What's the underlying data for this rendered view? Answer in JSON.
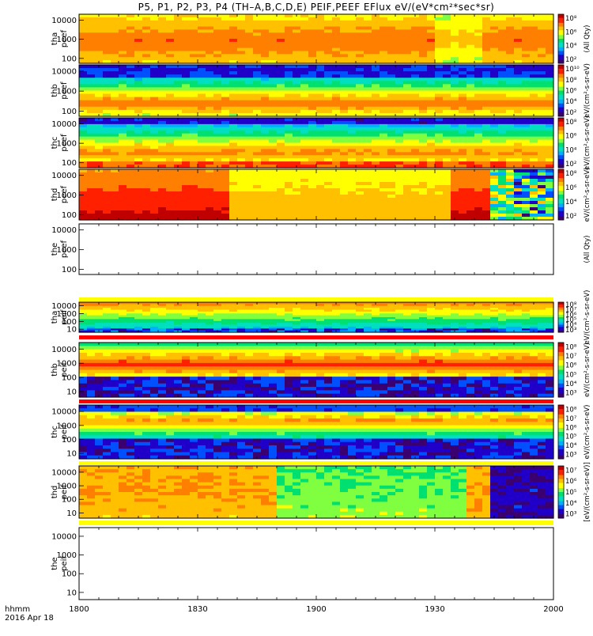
{
  "chart_data": {
    "type": "heatmap",
    "title": "P5, P1, P2, P3, P4 (TH–A,B,C,D,E) PEIF,PEEF EFlux eV/(eV*cm²*sec*sr)",
    "x_axis": {
      "tick_labels": [
        "1800",
        "1830",
        "1900",
        "1930",
        "2000"
      ],
      "range": [
        "18:00",
        "20:00"
      ],
      "label_line1": "hhmm",
      "label_line2": "2016 Apr 18"
    },
    "scale": "log",
    "panels": [
      {
        "label1": "tha",
        "label2": "peef",
        "yticks": [
          "10000",
          "1000",
          "100"
        ],
        "cbar_ticks": [
          "10⁸",
          "10⁶",
          "10⁴",
          "10²"
        ],
        "cbar_label": "(All Qty)",
        "pattern": "tha_e",
        "empty": false
      },
      {
        "label1": "thb",
        "label2": "peef",
        "yticks": [
          "10000",
          "1000",
          "100"
        ],
        "cbar_ticks": [
          "10¹⁰",
          "10⁸",
          "10⁶",
          "10⁴",
          "10²"
        ],
        "cbar_label": "eV/(cm²-s-sr-eV)",
        "pattern": "thb_e",
        "empty": false
      },
      {
        "label1": "thc",
        "label2": "peef",
        "yticks": [
          "10000",
          "1000",
          "100"
        ],
        "cbar_ticks": [
          "10⁸",
          "10⁶",
          "10⁴",
          "10²"
        ],
        "cbar_label": "eV/(cm²-s-sr-eV)",
        "pattern": "thc_e",
        "empty": false
      },
      {
        "label1": "thd",
        "label2": "peef",
        "yticks": [
          "10000",
          "1000",
          "100"
        ],
        "cbar_ticks": [
          "10⁸",
          "10⁶",
          "10⁴",
          "10²"
        ],
        "cbar_label": "eV/(cm²-s-sr-eV)",
        "pattern": "thd_e",
        "empty": false
      },
      {
        "label1": "the",
        "label2": "peef",
        "yticks": [
          "10000",
          "1000",
          "100"
        ],
        "cbar_ticks": [],
        "cbar_label": "(All Qty)",
        "pattern": "none",
        "empty": true
      },
      {
        "label1": "tha",
        "label2": "peif",
        "yticks": [
          "10000",
          "1000",
          "100",
          "10"
        ],
        "cbar_ticks": [
          "10⁸",
          "10⁷",
          "10⁶",
          "10⁵",
          "10⁴",
          "10³"
        ],
        "cbar_label": "eV/(cm²-s-sr-eV)",
        "pattern": "tha_i",
        "empty": false
      },
      {
        "label1": "thb",
        "label2": "peif",
        "yticks": [
          "10000",
          "1000",
          "100",
          "10"
        ],
        "cbar_ticks": [
          "10⁸",
          "10⁷",
          "10⁶",
          "10⁵",
          "10⁴",
          "10³"
        ],
        "cbar_label": "eV/(cm²-s-sr-eV)",
        "pattern": "thb_i",
        "empty": false
      },
      {
        "label1": "thc",
        "label2": "peif",
        "yticks": [
          "10000",
          "1000",
          "100",
          "10"
        ],
        "cbar_ticks": [
          "10⁸",
          "10⁷",
          "10⁶",
          "10⁵",
          "10⁴",
          "10³"
        ],
        "cbar_label": "eV/(cm²-s-sr-eV)",
        "pattern": "thc_i",
        "empty": false
      },
      {
        "label1": "thd",
        "label2": "peif",
        "yticks": [
          "10000",
          "1000",
          "100",
          "10"
        ],
        "cbar_ticks": [
          "10⁷",
          "10⁶",
          "10⁵",
          "10⁴",
          "10³"
        ],
        "cbar_label": "[eV/(cm²-s-sr-eV)]",
        "pattern": "thd_i",
        "empty": false
      },
      {
        "label1": "the",
        "label2": "peif",
        "yticks": [
          "10000",
          "1000",
          "100",
          "10"
        ],
        "cbar_ticks": [],
        "cbar_label": "",
        "pattern": "none",
        "empty": true
      }
    ]
  },
  "colors": {
    "rainbow": [
      "#3a006f",
      "#2000c8",
      "#0050ff",
      "#00b0ff",
      "#00e0c0",
      "#00e070",
      "#80ff40",
      "#ffff00",
      "#ffc000",
      "#ff8000",
      "#ff2000",
      "#c00000"
    ],
    "separator_yellow": "#ffff00",
    "separator_red": "#ff0000"
  }
}
